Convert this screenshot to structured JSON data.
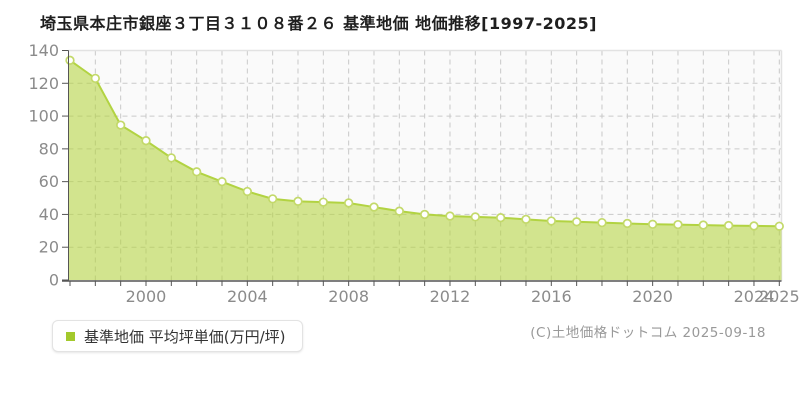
{
  "page": {
    "title": "埼玉県本庄市銀座３丁目３１０８番２６ 基準地価 地価推移[1997-2025]",
    "copyright": "(C)土地価格ドットコム 2025-09-18"
  },
  "legend": {
    "label": "基準地価 平均坪単価(万円/坪)",
    "marker_color": "#a3c92c"
  },
  "chart_data": {
    "type": "area",
    "title": "埼玉県本庄市銀座３丁目３１０８番２６ 基準地価 地価推移[1997-2025]",
    "series_name": "基準地価 平均坪単価(万円/坪)",
    "xlabel": "",
    "ylabel": "平均坪単価(万円/坪)",
    "x": [
      1997,
      1998,
      1999,
      2000,
      2001,
      2002,
      2003,
      2004,
      2005,
      2006,
      2007,
      2008,
      2009,
      2010,
      2011,
      2012,
      2013,
      2014,
      2015,
      2016,
      2017,
      2018,
      2019,
      2020,
      2021,
      2022,
      2023,
      2024,
      2025
    ],
    "values": [
      134,
      123,
      94.5,
      85,
      74.5,
      66,
      60,
      54,
      49.5,
      48,
      47.5,
      47,
      44.5,
      42,
      40,
      39,
      38.5,
      38,
      37,
      36,
      35.5,
      35,
      34.5,
      34,
      33.8,
      33.5,
      33.2,
      33,
      32.8
    ],
    "ylim": [
      0,
      140
    ],
    "y_ticks": [
      0,
      20,
      40,
      60,
      80,
      100,
      120,
      140
    ],
    "x_tick_labels": [
      2000,
      2004,
      2008,
      2012,
      2016,
      2020,
      2024,
      2025
    ],
    "grid": true,
    "legend_position": "bottom-left",
    "colors": {
      "area_fill_rgba": "rgba(181,212,64,0.58)",
      "line": "#b2d342",
      "marker_fill": "#ffffff",
      "marker_stroke": "#c3d96a",
      "plot_bg": "#fafafa",
      "plot_border": "#e2e2e2",
      "gridline": "#c9c9c9",
      "axis": "#555555",
      "tick_label": "#8b8b8b"
    }
  }
}
